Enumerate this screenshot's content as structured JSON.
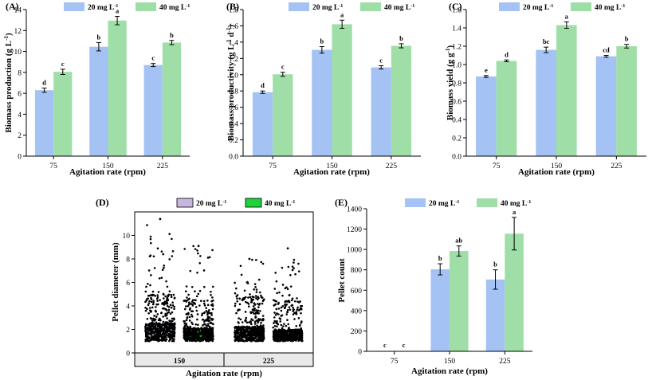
{
  "colors": {
    "s20": "#a4c2f4",
    "s40": "#9fdfa7",
    "d20": "#c9b6df",
    "d40": "#1fd13a",
    "axis": "#000000",
    "point": "#000000"
  },
  "chart_data": [
    {
      "type": "bar",
      "panel": "(A)",
      "categories": [
        "75",
        "150",
        "225"
      ],
      "series": [
        {
          "name": "20 mg L",
          "sup": "-1",
          "values": [
            6.3,
            10.45,
            8.7
          ],
          "errors": [
            0.2,
            0.4,
            0.15
          ],
          "labels": [
            "d",
            "b",
            "c"
          ]
        },
        {
          "name": "40 mg L",
          "sup": "-1",
          "values": [
            8.05,
            12.95,
            10.85
          ],
          "errors": [
            0.25,
            0.4,
            0.2
          ],
          "labels": [
            "c",
            "a",
            "b"
          ]
        }
      ],
      "xlabel": "Agitation rate (rpm)",
      "ylabel": {
        "main": "Biomass production (g L",
        "sup": "-1",
        "close": ")"
      },
      "ylim": [
        0,
        14
      ],
      "yticks": [
        "0",
        "2",
        "4",
        "6",
        "8",
        "10",
        "12",
        "14"
      ]
    },
    {
      "type": "bar",
      "panel": "(B)",
      "categories": [
        "75",
        "150",
        "225"
      ],
      "series": [
        {
          "name": "20 mg L",
          "sup": "-1",
          "values": [
            0.785,
            1.305,
            1.09
          ],
          "errors": [
            0.015,
            0.04,
            0.02
          ],
          "labels": [
            "d",
            "b",
            "c"
          ]
        },
        {
          "name": "40 mg L",
          "sup": "-1",
          "values": [
            1.005,
            1.62,
            1.355
          ],
          "errors": [
            0.025,
            0.05,
            0.025
          ],
          "labels": [
            "c",
            "a",
            "b"
          ]
        }
      ],
      "xlabel": "Agitation rate (rpm)",
      "ylabel": {
        "main": "Biomass productivity (g L",
        "sup": "-1",
        "mid": " d",
        "sup2": "-1",
        "close": ")"
      },
      "ylim": [
        0,
        1.8
      ],
      "yticks": [
        "0.0",
        "0.2",
        "0.4",
        "0.6",
        "0.8",
        "1.0",
        "1.2",
        "1.4",
        "1.6",
        "1.8"
      ]
    },
    {
      "type": "bar",
      "panel": "(C)",
      "categories": [
        "75",
        "150",
        "225"
      ],
      "series": [
        {
          "name": "20 mg L",
          "sup": "-1",
          "values": [
            0.87,
            1.16,
            1.09
          ],
          "errors": [
            0.01,
            0.03,
            0.01
          ],
          "labels": [
            "e",
            "bc",
            "cd"
          ]
        },
        {
          "name": "40 mg L",
          "sup": "-1",
          "values": [
            1.04,
            1.43,
            1.2
          ],
          "errors": [
            0.01,
            0.035,
            0.02
          ],
          "labels": [
            "d",
            "a",
            "b"
          ]
        }
      ],
      "xlabel": "Agitation rate (rpm)",
      "ylabel": {
        "main": "Biomass yield (g g",
        "sup": "-1",
        "close": ")"
      },
      "ylim": [
        0,
        1.6
      ],
      "yticks": [
        "0.0",
        "0.2",
        "0.4",
        "0.6",
        "0.8",
        "1.0",
        "1.2",
        "1.4",
        "1.6"
      ]
    },
    {
      "type": "box",
      "panel": "(D)",
      "categories": [
        "150",
        "225"
      ],
      "series": [
        {
          "name": "20 mg L",
          "sup": "-1",
          "boxes": [
            {
              "q1": 1.35,
              "median": 1.85,
              "q3": 2.45,
              "max": 11.4
            },
            {
              "q1": 1.3,
              "median": 1.75,
              "q3": 2.15,
              "max": 8.0
            }
          ]
        },
        {
          "name": "40 mg L",
          "sup": "-1",
          "boxes": [
            {
              "q1": 1.2,
              "median": 1.55,
              "q3": 2.05,
              "max": 9.1
            },
            {
              "q1": 1.1,
              "median": 1.5,
              "q3": 1.9,
              "max": 8.9
            }
          ]
        }
      ],
      "xlabel": "Agitation rate (rpm)",
      "ylabel": {
        "main": "Pellet diameter (mm)"
      },
      "ylim": [
        0,
        12
      ],
      "yticks": [
        "0",
        "2",
        "4",
        "6",
        "8",
        "10"
      ]
    },
    {
      "type": "bar",
      "panel": "(E)",
      "categories": [
        "75",
        "150",
        "225"
      ],
      "series": [
        {
          "name": "20 mg L",
          "sup": "-1",
          "values": [
            0,
            805,
            705
          ],
          "errors": [
            0,
            55,
            95
          ],
          "labels": [
            "c",
            "b",
            "b"
          ]
        },
        {
          "name": "40 mg L",
          "sup": "-1",
          "values": [
            0,
            985,
            1155
          ],
          "errors": [
            0,
            50,
            160
          ],
          "labels": [
            "c",
            "ab",
            "a"
          ]
        }
      ],
      "xlabel": "Agitation rate (rpm)",
      "ylabel": {
        "main": "Pellet count"
      },
      "ylim": [
        0,
        1400
      ],
      "yticks": [
        "0",
        "200",
        "400",
        "600",
        "800",
        "1000",
        "1200",
        "1400"
      ]
    }
  ]
}
